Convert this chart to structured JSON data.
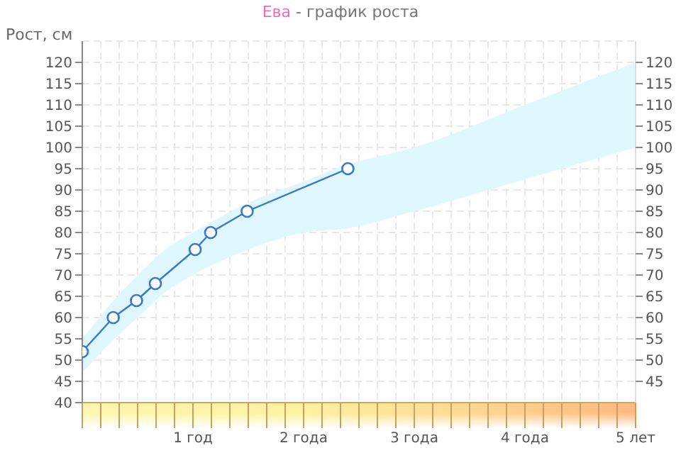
{
  "chart_data": {
    "type": "line",
    "title": "Ева - график роста",
    "ylabel": "Рост, см",
    "xlim": [
      0,
      5
    ],
    "xticks": [
      {
        "value": 0,
        "label": null
      },
      {
        "value": 0.1667,
        "label": null
      },
      {
        "value": 0.3333,
        "label": null
      },
      {
        "value": 0.5,
        "label": null
      },
      {
        "value": 0.6667,
        "label": null
      },
      {
        "value": 0.8333,
        "label": null
      },
      {
        "value": 1,
        "label": "1 год"
      },
      {
        "value": 1.1667,
        "label": null
      },
      {
        "value": 1.3333,
        "label": null
      },
      {
        "value": 1.5,
        "label": null
      },
      {
        "value": 1.6667,
        "label": null
      },
      {
        "value": 1.8333,
        "label": null
      },
      {
        "value": 2,
        "label": "2 года"
      },
      {
        "value": 2.1667,
        "label": null
      },
      {
        "value": 2.3333,
        "label": null
      },
      {
        "value": 2.5,
        "label": null
      },
      {
        "value": 2.6667,
        "label": null
      },
      {
        "value": 2.8333,
        "label": null
      },
      {
        "value": 3,
        "label": "3 года"
      },
      {
        "value": 3.1667,
        "label": null
      },
      {
        "value": 3.3333,
        "label": null
      },
      {
        "value": 3.5,
        "label": null
      },
      {
        "value": 3.6667,
        "label": null
      },
      {
        "value": 3.8333,
        "label": null
      },
      {
        "value": 4,
        "label": "4 года"
      },
      {
        "value": 4.1667,
        "label": null
      },
      {
        "value": 4.3333,
        "label": null
      },
      {
        "value": 4.5,
        "label": null
      },
      {
        "value": 4.6667,
        "label": null
      },
      {
        "value": 4.8333,
        "label": null
      },
      {
        "value": 5,
        "label": "5 лет"
      }
    ],
    "ylim": [
      40,
      125
    ],
    "yticks": [
      40,
      45,
      50,
      55,
      60,
      65,
      70,
      75,
      80,
      85,
      90,
      95,
      100,
      105,
      110,
      115,
      120
    ],
    "y2lim": [
      40,
      125
    ],
    "y2ticks": [
      45,
      50,
      55,
      60,
      65,
      70,
      75,
      80,
      85,
      90,
      95,
      100,
      105,
      110,
      115,
      120
    ],
    "grid": true,
    "legend": false,
    "marker": "circle",
    "line_style": "solid",
    "series": [
      {
        "color": "#dff7ff",
        "x": [
          0,
          0.25,
          0.5,
          0.75,
          1,
          1.5,
          2,
          2.4,
          3,
          4,
          5
        ],
        "values": [
          null,
          null,
          null,
          null,
          null,
          null,
          null,
          null,
          null,
          null,
          null
        ],
        "lower": [
          47,
          54,
          60,
          66,
          70,
          76,
          80,
          81,
          85,
          92.5,
          100
        ],
        "upper": [
          55,
          63,
          70,
          76,
          80,
          87,
          92,
          96,
          100,
          110,
          120
        ]
      },
      {
        "type": "line",
        "color": "#3a78c8",
        "x": [
          0,
          0.28,
          0.49,
          0.66,
          1.02,
          1.16,
          1.49,
          2.4
        ],
        "values": [
          52,
          60,
          64,
          68,
          76,
          80,
          85,
          95
        ]
      }
    ]
  }
}
